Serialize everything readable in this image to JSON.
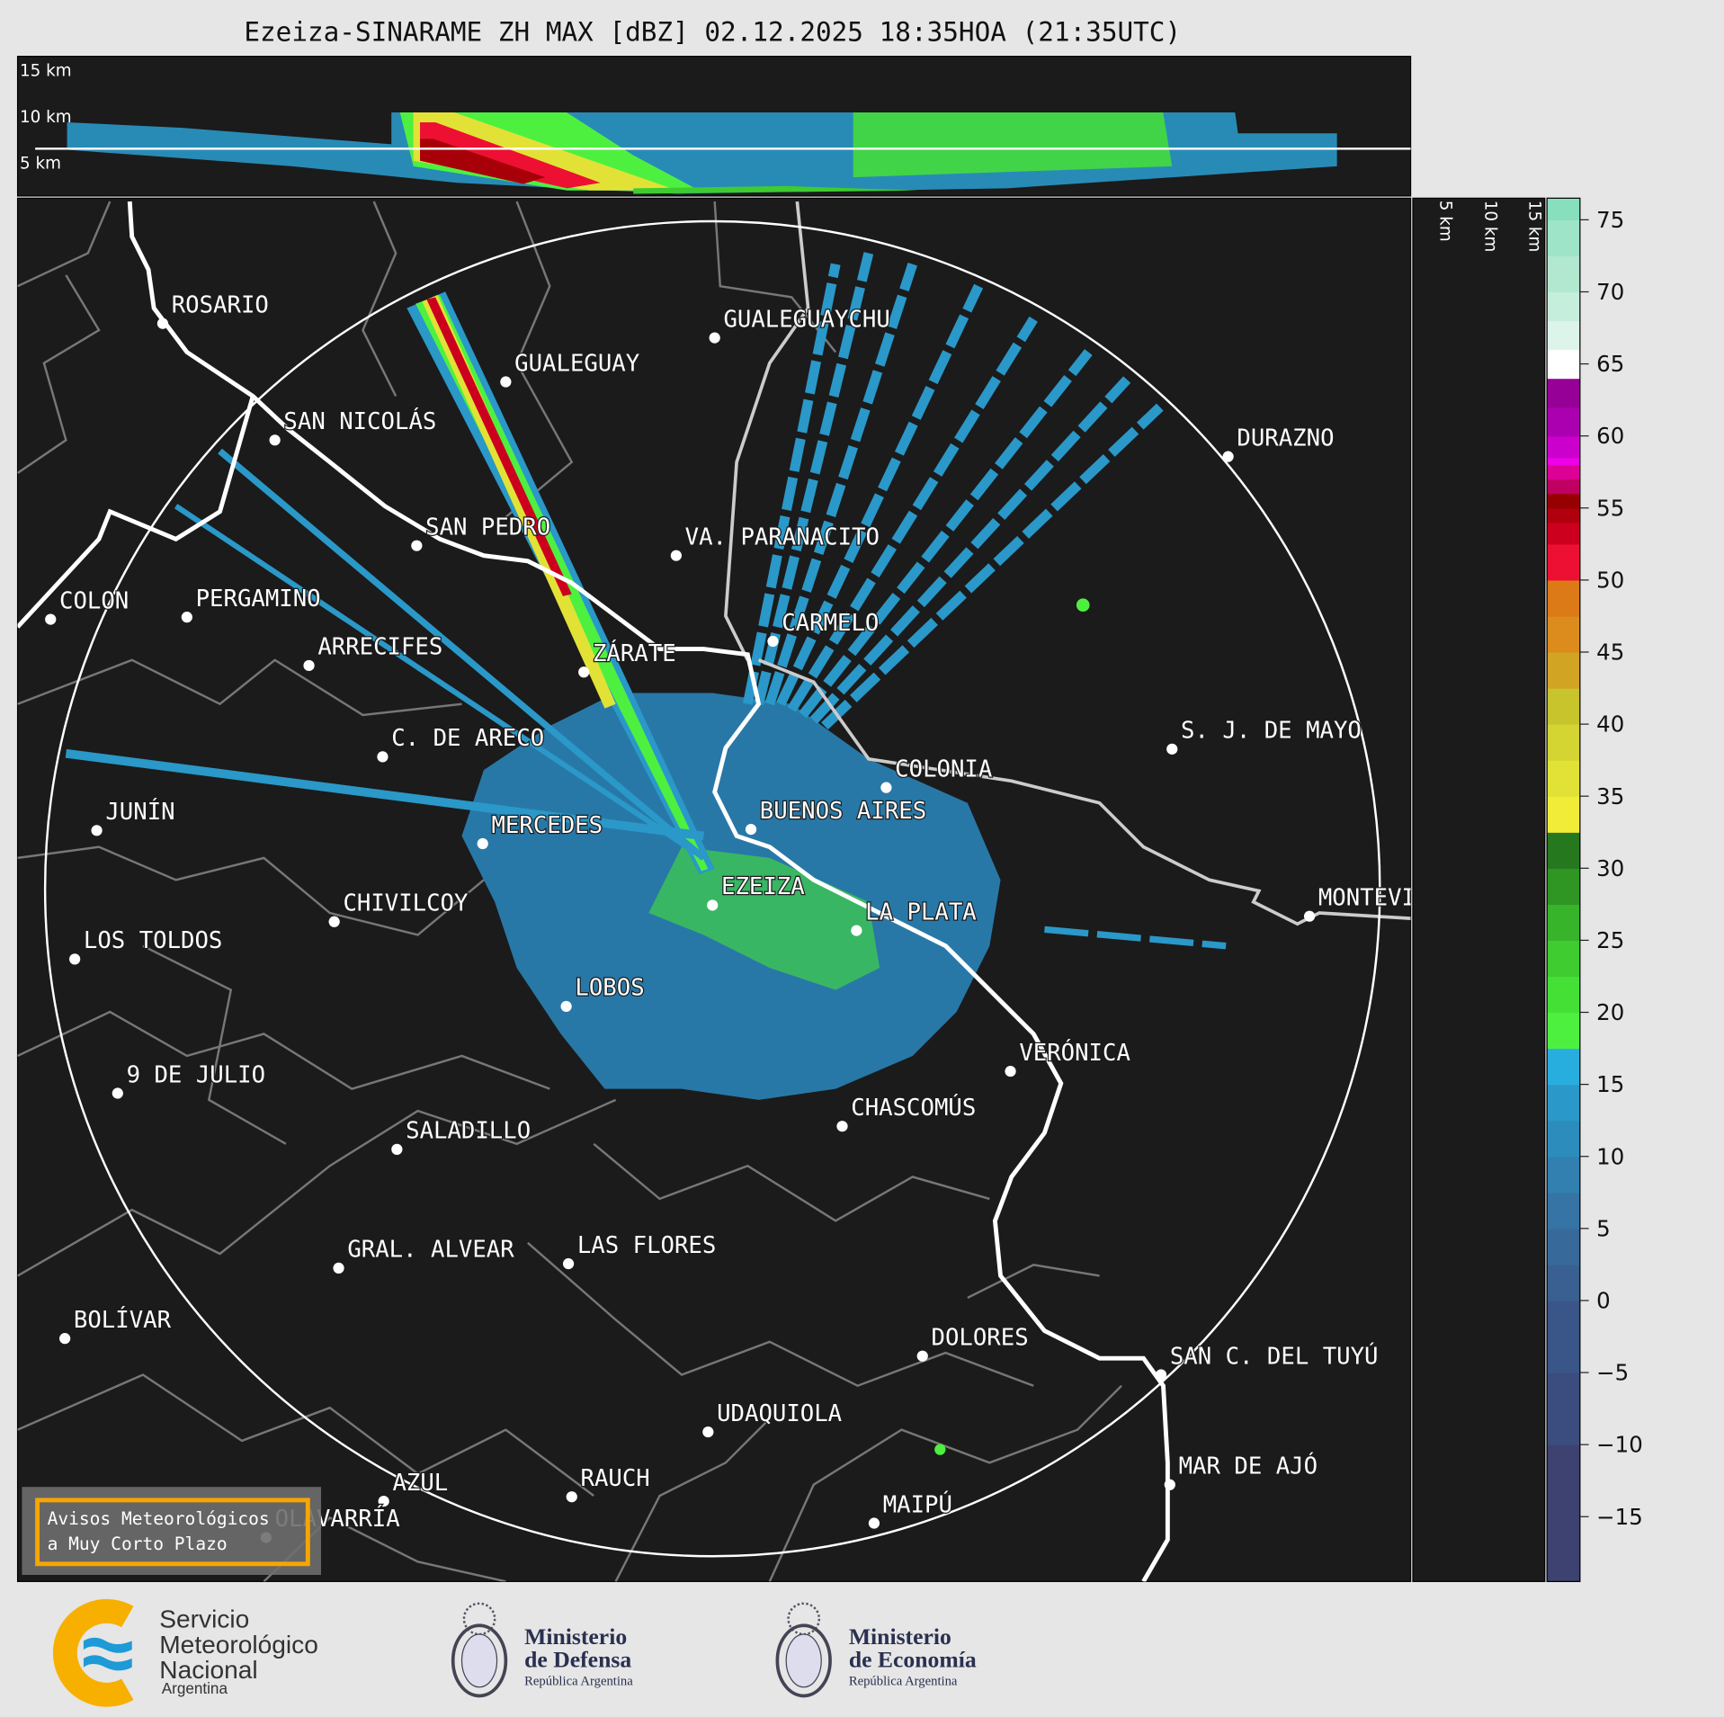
{
  "title": "Ezeiza-SINARAME ZH MAX [dBZ] 02.12.2025 18:35HOA (21:35UTC)",
  "top_panel": {
    "height_labels": [
      "15 km",
      "10 km",
      "5 km"
    ]
  },
  "side_panel": {
    "height_labels": [
      "5 km",
      "10 km",
      "15 km"
    ]
  },
  "colorbar": {
    "unit": "dBZ",
    "ticks": [
      "75",
      "70",
      "65",
      "60",
      "55",
      "50",
      "45",
      "40",
      "35",
      "30",
      "25",
      "20",
      "15",
      "10",
      "5",
      "0",
      "−5",
      "−10",
      "−15"
    ],
    "colors": [
      "#3d4270",
      "#3b4c7e",
      "#3a5688",
      "#396090",
      "#376a9a",
      "#3574a4",
      "#3180b0",
      "#2c8cbc",
      "#2a98c8",
      "#28aede",
      "#4ef040",
      "#45e036",
      "#3ecc30",
      "#38b42a",
      "#2f9624",
      "#26781e",
      "#f0ec38",
      "#e2e236",
      "#d4d432",
      "#c8c42c",
      "#d2a424",
      "#dc8c1c",
      "#dd7a18",
      "#ee1032",
      "#cc001e",
      "#b0000e",
      "#960000",
      "#c00060",
      "#dc0094",
      "#ee00e8",
      "#cc00cc",
      "#aa00b0",
      "#960096",
      "#ffffff",
      "#ddf4ea",
      "#c6eedc",
      "#b2e8d0",
      "#9ee4c8",
      "#8cdfbf",
      "#88dfbe"
    ]
  },
  "cities": [
    {
      "name": "ROSARIO"
    },
    {
      "name": "GUALEGUAY"
    },
    {
      "name": "GUALEGUAYCHU"
    },
    {
      "name": "SAN NICOLÁS"
    },
    {
      "name": "DURAZNO"
    },
    {
      "name": "SAN PEDRO"
    },
    {
      "name": "VA. PARANACITO"
    },
    {
      "name": "COLON"
    },
    {
      "name": "PERGAMINO"
    },
    {
      "name": "CARMELO"
    },
    {
      "name": "ARRECIFES"
    },
    {
      "name": "ZÁRATE"
    },
    {
      "name": "C. DE ARECO"
    },
    {
      "name": "S. J. DE MAYO"
    },
    {
      "name": "COLONIA"
    },
    {
      "name": "JUNÍN"
    },
    {
      "name": "BUENOS AIRES"
    },
    {
      "name": "MERCEDES"
    },
    {
      "name": "EZEIZA"
    },
    {
      "name": "MONTEVIDEO"
    },
    {
      "name": "CHIVILCOY"
    },
    {
      "name": "LA PLATA"
    },
    {
      "name": "LOS TOLDOS"
    },
    {
      "name": "LOBOS"
    },
    {
      "name": "VERÓNICA"
    },
    {
      "name": "9 DE JULIO"
    },
    {
      "name": "CHASCOMÚS"
    },
    {
      "name": "SALADILLO"
    },
    {
      "name": "GRAL. ALVEAR"
    },
    {
      "name": "LAS FLORES"
    },
    {
      "name": "BOLÍVAR"
    },
    {
      "name": "DOLORES"
    },
    {
      "name": "SAN C. DEL TUYÚ"
    },
    {
      "name": "UDAQUIOLA"
    },
    {
      "name": "MAR DE AJÓ"
    },
    {
      "name": "AZUL"
    },
    {
      "name": "RAUCH"
    },
    {
      "name": "OLAVARRÍA"
    },
    {
      "name": "MAIPÚ"
    }
  ],
  "alert_box": {
    "line1": "Avisos Meteorológicos",
    "line2": "a Muy Corto Plazo"
  },
  "footer": {
    "smn": {
      "line1": "Servicio",
      "line2": "Meteorológico",
      "line3": "Nacional",
      "line4": "Argentina"
    },
    "defensa": {
      "line1": "Ministerio",
      "line2": "de Defensa",
      "line3": "República Argentina"
    },
    "economia": {
      "line1": "Ministerio",
      "line2": "de Economía",
      "line3": "República Argentina"
    }
  }
}
